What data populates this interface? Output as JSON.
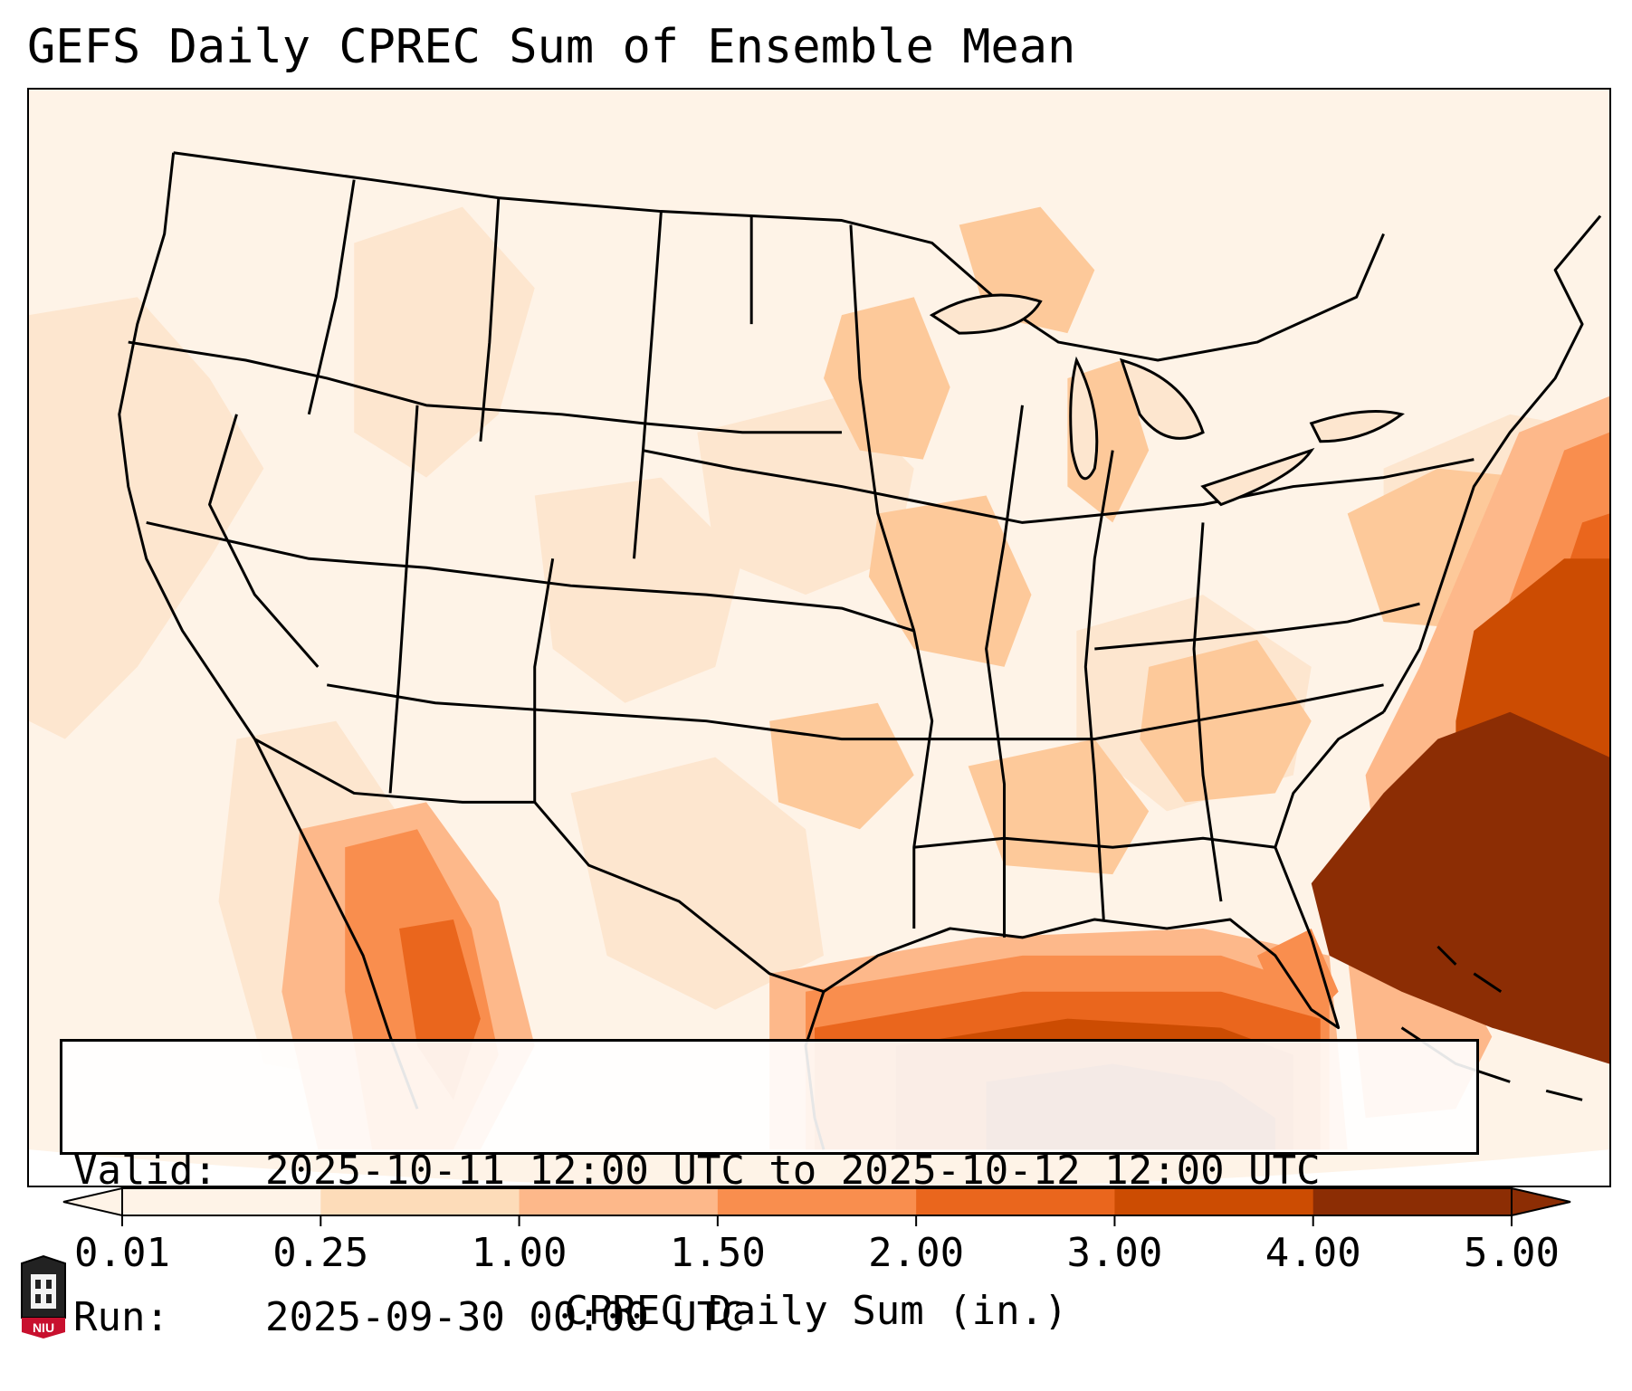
{
  "title": "GEFS Daily CPREC Sum of Ensemble Mean",
  "info": {
    "valid_label": "Valid:",
    "valid_value": "2025-10-11 12:00 UTC to 2025-10-12 12:00 UTC",
    "run_label": "Run:",
    "run_value": "2025-09-30 00:00 UTC"
  },
  "colorbar": {
    "label": "CPREC Daily Sum (in.)",
    "ticks": [
      "0.01",
      "0.25",
      "1.00",
      "1.50",
      "2.00",
      "3.00",
      "4.00",
      "5.00"
    ],
    "colors": [
      "#fef3e7",
      "#fddcb9",
      "#fdb88a",
      "#f98e4e",
      "#ea661d",
      "#cc4c02",
      "#8c2d04"
    ],
    "extend": "both"
  },
  "map": {
    "region": "CONUS",
    "projection": "Lambert conformal",
    "heaviest_precip_regions": [
      "Gulf of Mexico",
      "Florida",
      "Southeast US Atlantic coast",
      "Northern Mexico / Sierra Madre"
    ]
  },
  "logo": {
    "text": "NIU"
  }
}
